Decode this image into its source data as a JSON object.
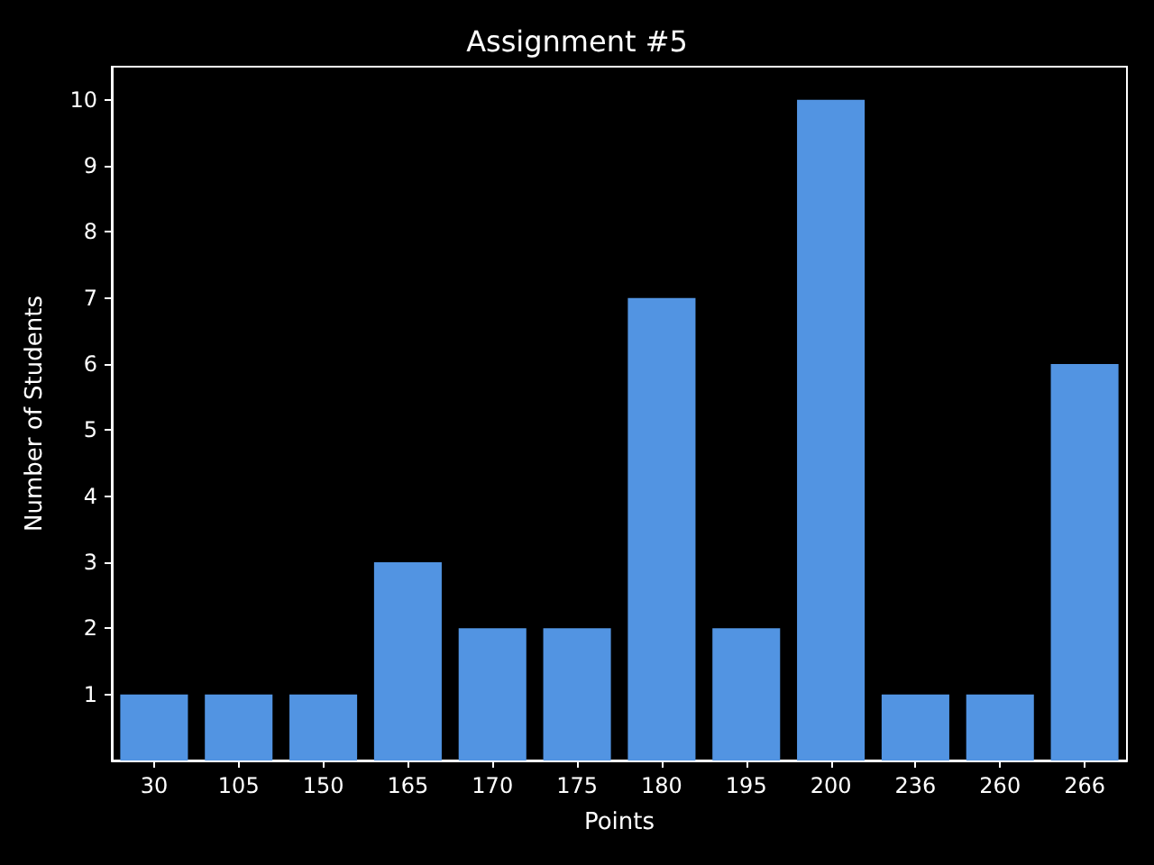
{
  "chart_data": {
    "type": "bar",
    "title": "Assignment #5",
    "xlabel": "Points",
    "ylabel": "Number of Students",
    "categories": [
      "30",
      "105",
      "150",
      "165",
      "170",
      "175",
      "180",
      "195",
      "200",
      "236",
      "260",
      "266"
    ],
    "values": [
      1,
      1,
      1,
      3,
      2,
      2,
      7,
      2,
      10,
      1,
      1,
      6
    ],
    "color": "#5294e2",
    "ylim": [
      0,
      10.5
    ],
    "yticks": [
      1,
      2,
      3,
      4,
      5,
      6,
      7,
      8,
      9,
      10
    ],
    "grid": false
  }
}
